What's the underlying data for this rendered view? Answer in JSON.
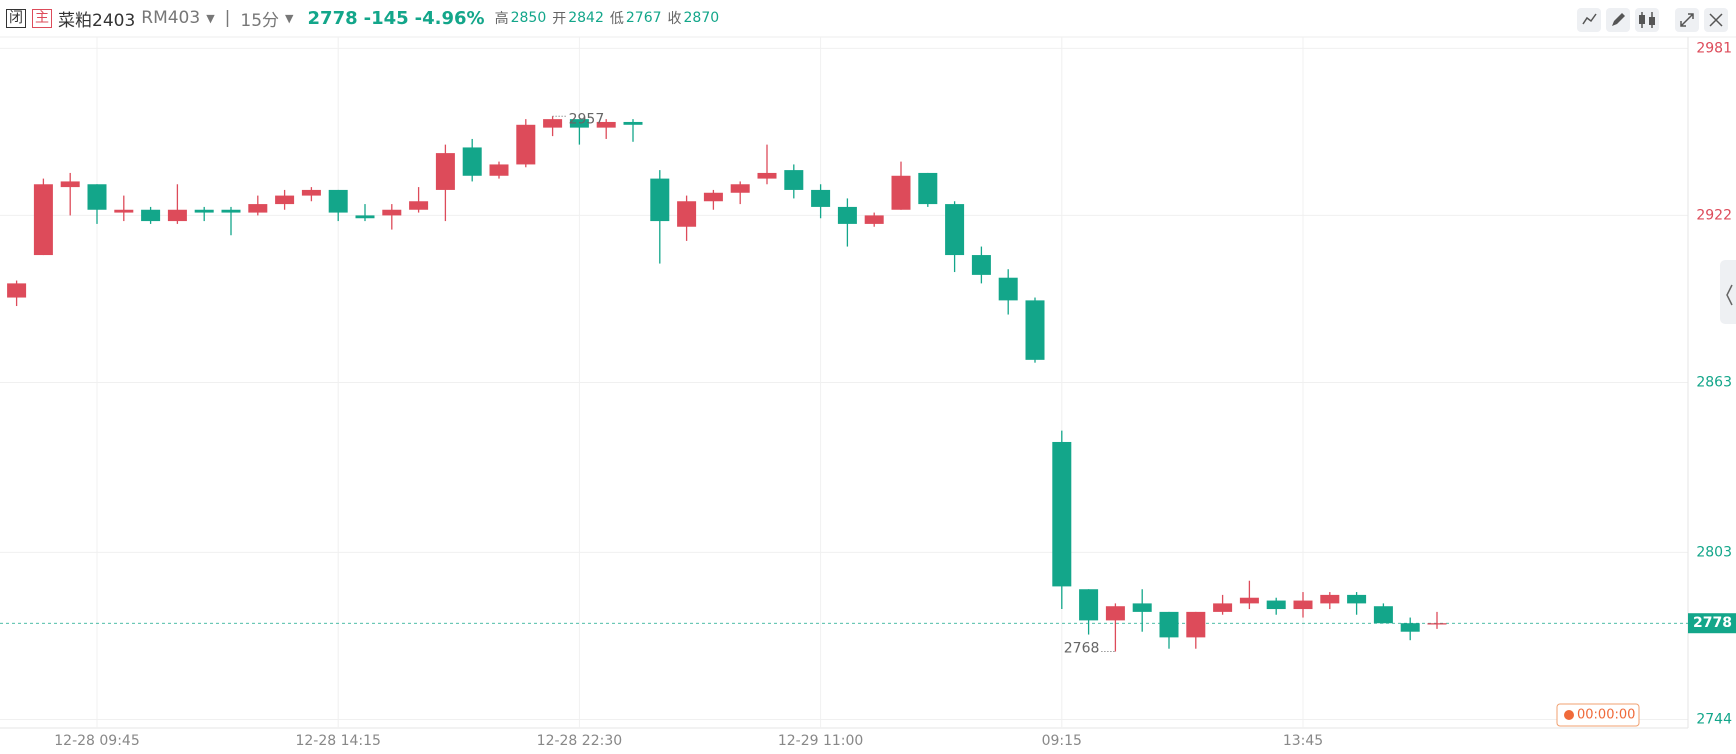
{
  "header": {
    "status": "闭",
    "main": "主",
    "name": "菜粕2403",
    "code": "RM403",
    "period": "15分",
    "price": "2778",
    "change": "-145",
    "change_pct": "-4.96%",
    "high_label": "高",
    "high": "2850",
    "open_label": "开",
    "open": "2842",
    "low_label": "低",
    "low": "2767",
    "close_label": "收",
    "close": "2870"
  },
  "chart_data": {
    "type": "candlestick",
    "categories": [
      null,
      null,
      null,
      "12-28 09:45",
      null,
      null,
      null,
      null,
      null,
      null,
      null,
      null,
      "12-28 14:15",
      null,
      null,
      null,
      null,
      null,
      null,
      null,
      null,
      "12-28 22:30",
      null,
      null,
      null,
      null,
      null,
      null,
      null,
      null,
      "12-29 11:00",
      null,
      null,
      null,
      null,
      null,
      null,
      null,
      null,
      "09:15",
      null,
      null,
      null,
      null,
      null,
      null,
      null,
      null,
      "13:45",
      null,
      null,
      null,
      null,
      null
    ],
    "open": [
      2893,
      2908,
      2932,
      2933,
      2923,
      2924,
      2920,
      2924,
      2924,
      2923,
      2926,
      2929,
      2931,
      2922,
      2922,
      2924,
      2931,
      2946,
      2936,
      2940,
      2953,
      2956,
      2953,
      2955,
      2935,
      2918,
      2927,
      2930,
      2935,
      2938,
      2931,
      2925,
      2919,
      2924,
      2937,
      2926,
      2908,
      2900,
      2892,
      2842,
      2790,
      2779,
      2785,
      2782,
      2773,
      2782,
      2785,
      2786,
      2783,
      2785,
      2788,
      2784,
      2778,
      2778
    ],
    "high": [
      2899,
      2935,
      2937,
      2933,
      2929,
      2925,
      2933,
      2925,
      2925,
      2929,
      2931,
      2932,
      2931,
      2926,
      2926,
      2932,
      2947,
      2949,
      2941,
      2956,
      2957,
      2955,
      2956,
      2956,
      2938,
      2929,
      2931,
      2934,
      2947,
      2940,
      2933,
      2928,
      2923,
      2941,
      2937,
      2927,
      2911,
      2903,
      2893,
      2846,
      2790,
      2785,
      2790,
      2782,
      2782,
      2788,
      2793,
      2787,
      2789,
      2789,
      2789,
      2785,
      2780,
      2782
    ],
    "low": [
      2890,
      2908,
      2922,
      2919,
      2920,
      2919,
      2919,
      2920,
      2915,
      2922,
      2924,
      2927,
      2920,
      2920,
      2917,
      2923,
      2920,
      2934,
      2935,
      2939,
      2950,
      2947,
      2949,
      2948,
      2905,
      2913,
      2924,
      2926,
      2933,
      2928,
      2921,
      2911,
      2918,
      2924,
      2925,
      2902,
      2898,
      2887,
      2870,
      2783,
      2774,
      2768,
      2775,
      2769,
      2769,
      2781,
      2783,
      2781,
      2780,
      2783,
      2781,
      2778,
      2772,
      2776
    ],
    "close": [
      2898,
      2933,
      2934,
      2924,
      2924,
      2920,
      2924,
      2923,
      2923,
      2926,
      2929,
      2931,
      2923,
      2921,
      2924,
      2927,
      2944,
      2936,
      2940,
      2954,
      2956,
      2953,
      2955,
      2954,
      2920,
      2927,
      2930,
      2933,
      2937,
      2931,
      2925,
      2919,
      2922,
      2936,
      2926,
      2908,
      2901,
      2892,
      2871,
      2791,
      2779,
      2784,
      2782,
      2773,
      2782,
      2785,
      2787,
      2783,
      2786,
      2788,
      2785,
      2778,
      2775,
      2778
    ],
    "up_color": "#dd4b5a",
    "down_color": "#13a68a",
    "ylim": [
      2741,
      2985
    ],
    "yticks": [
      2981,
      2922,
      2863,
      2803,
      2744
    ],
    "ytick_colors": [
      "#dd4b5a",
      "#dd4b5a",
      "#13a68a",
      "#13a68a",
      "#13a68a"
    ],
    "grid": true,
    "last_price": 2778,
    "countdown": "00:00:00"
  }
}
